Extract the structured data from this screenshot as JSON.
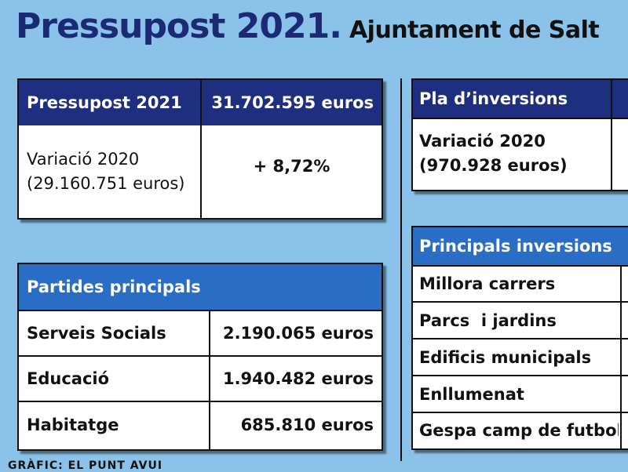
{
  "header": {
    "title": "Pressupost 2021.",
    "subtitle": "Ajuntament de Salt"
  },
  "budget_box": {
    "label": "Pressupost 2021",
    "amount": "31.702.595 euros",
    "variation_label_line1": "Variació 2020",
    "variation_label_line2": "(29.160.751 euros)",
    "variation_value": "+ 8,72%"
  },
  "main_items_box": {
    "header": "Partides principals",
    "rows": [
      {
        "label": "Serveis Socials",
        "value": "2.190.065 euros"
      },
      {
        "label": "Educació",
        "value": "1.940.482 euros"
      },
      {
        "label": "Habitatge",
        "value": "685.810 euros"
      }
    ]
  },
  "investment_plan_box": {
    "header": "Pla d’inversions",
    "variation_line1": "Variació 2020",
    "variation_line2": "(970.928 euros)"
  },
  "main_investments_box": {
    "header": "Principals inversions",
    "items": [
      "Millora carrers",
      "Parcs  i jardins",
      "Edificis municipals",
      "Enllumenat",
      "Gespa camp de futbol"
    ]
  },
  "credit": "GRÀFIC: EL PUNT AVUI",
  "colors": {
    "background": "#8ac2ea",
    "navy_header": "#1f2f80",
    "blue_header": "#2a6dc4",
    "title": "#1c2a74"
  }
}
